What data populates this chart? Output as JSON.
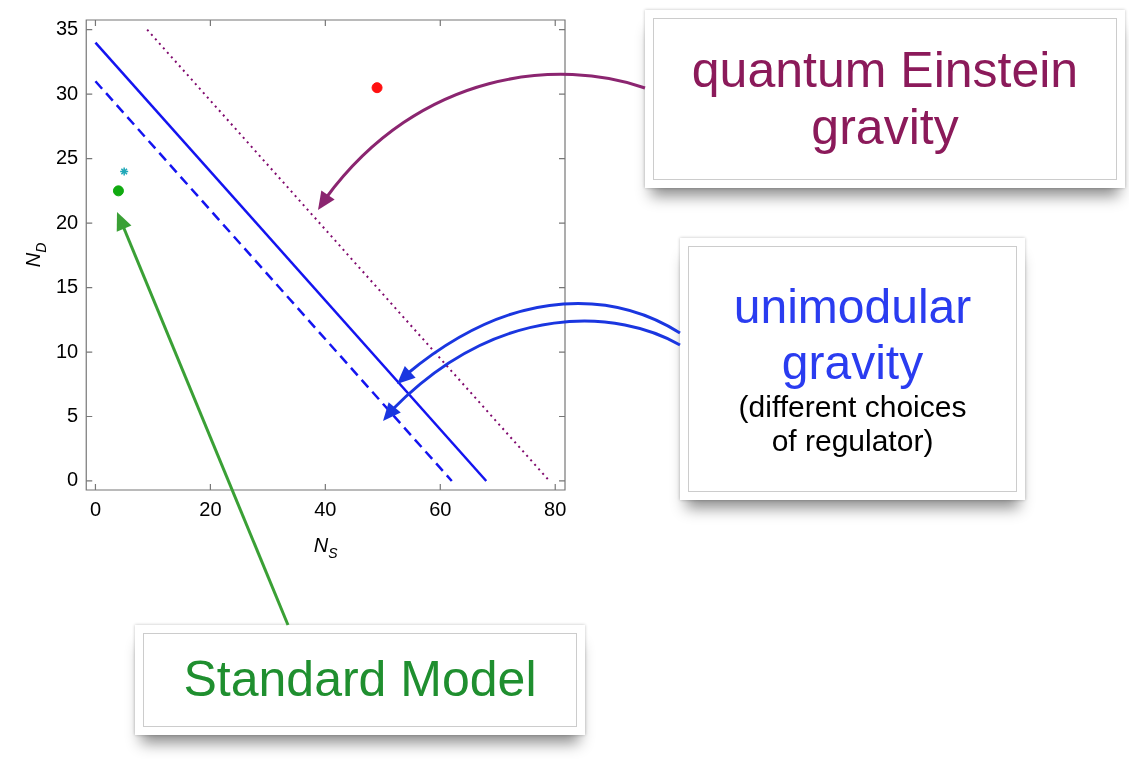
{
  "chart_data": {
    "type": "line",
    "xlabel": "N$_{S}$",
    "ylabel": "N$_{D}$",
    "xlim": [
      -1.6,
      81.7
    ],
    "ylim": [
      -0.7,
      35.75
    ],
    "xticks": [
      0,
      20,
      40,
      60,
      80
    ],
    "yticks": [
      0,
      5,
      10,
      15,
      20,
      25,
      30,
      35
    ],
    "grid": false,
    "legend": false,
    "series": [
      {
        "color": "#1414f0",
        "x": [
          0,
          68
        ],
        "values": [
          34,
          0
        ],
        "line_style": "solid",
        "marker": "none"
      },
      {
        "color": "#1414f0",
        "x": [
          0,
          62
        ],
        "values": [
          31,
          0
        ],
        "line_style": "dashed",
        "marker": "none"
      },
      {
        "color": "#800a6e",
        "x": [
          9,
          79
        ],
        "values": [
          35,
          0
        ],
        "line_style": "dotted",
        "marker": "none"
      },
      {
        "type": "scatter",
        "color": "#ff1010",
        "x": [
          49
        ],
        "values": [
          30.5
        ],
        "marker": "circle"
      },
      {
        "type": "scatter",
        "color": "#10aa10",
        "x": [
          4
        ],
        "values": [
          22.5
        ],
        "marker": "circle"
      },
      {
        "type": "scatter",
        "color": "#20a8b8",
        "x": [
          5
        ],
        "values": [
          24
        ],
        "marker": "cross"
      }
    ],
    "annotations": [
      "quantum Einstein gravity",
      "unimodular gravity",
      "(different choices of regulator)",
      "Standard Model"
    ]
  }
}
